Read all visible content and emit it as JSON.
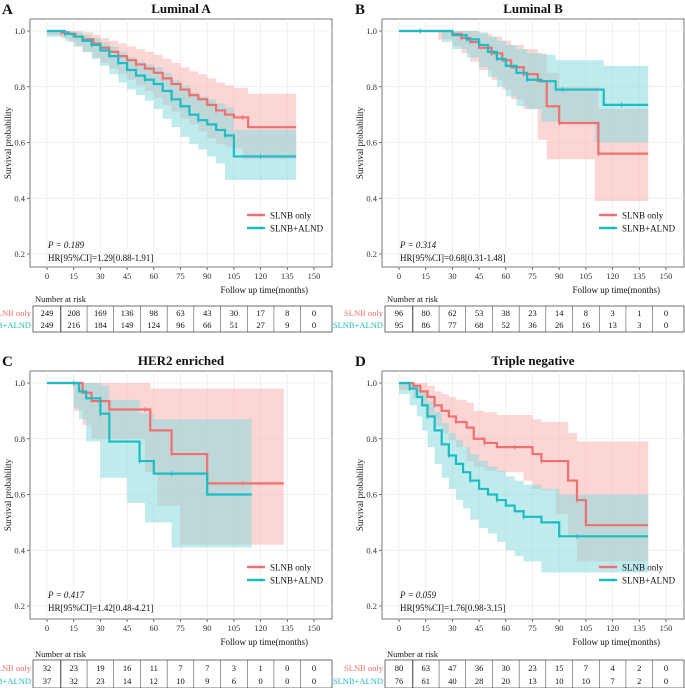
{
  "figure": {
    "y_axis_label": "Survival probability",
    "x_axis_label": "Follow up time(months)",
    "risk_title": "Number at risk",
    "colors": {
      "slnb": "#f07070",
      "alnd": "#1cbcc4",
      "slnb_fill": "#f9b2b2",
      "alnd_fill": "#8adadd"
    }
  },
  "chart_data": [
    {
      "type": "line",
      "letter": "A",
      "title": "Luminal A",
      "xlabel": "Follow up time(months)",
      "ylabel": "Survival probability",
      "xlim": [
        0,
        150
      ],
      "ylim": [
        0.2,
        1.0
      ],
      "x_ticks": [
        "0",
        "15",
        "30",
        "45",
        "60",
        "75",
        "90",
        "105",
        "120",
        "135",
        "150"
      ],
      "y_ticks": [
        "1.0",
        "0.8",
        "0.6",
        "0.4",
        "0.2"
      ],
      "legend": [
        "SLNB only",
        "SLNB+ALND"
      ],
      "p_text": "P = 0.189",
      "hr_text": "HR[95%CI]=1.29[0.88-1.91]",
      "risk_times": [
        0,
        15,
        30,
        45,
        60,
        75,
        90,
        105,
        120,
        135,
        150
      ],
      "series": [
        {
          "name": "SLNB only",
          "x": [
            0,
            8,
            12,
            16,
            20,
            26,
            30,
            35,
            40,
            45,
            50,
            55,
            60,
            65,
            70,
            75,
            80,
            85,
            90,
            95,
            100,
            105,
            110,
            113,
            125,
            140
          ],
          "y": [
            1.0,
            0.995,
            0.99,
            0.98,
            0.97,
            0.955,
            0.94,
            0.925,
            0.91,
            0.895,
            0.88,
            0.865,
            0.85,
            0.83,
            0.81,
            0.79,
            0.77,
            0.755,
            0.735,
            0.715,
            0.7,
            0.69,
            0.69,
            0.655,
            0.655,
            0.655
          ],
          "lower": [
            1.0,
            0.985,
            0.975,
            0.96,
            0.945,
            0.925,
            0.905,
            0.885,
            0.865,
            0.845,
            0.825,
            0.805,
            0.785,
            0.76,
            0.735,
            0.71,
            0.685,
            0.665,
            0.64,
            0.615,
            0.595,
            0.585,
            0.58,
            0.54,
            0.54,
            0.54
          ],
          "upper": [
            1.0,
            1.0,
            1.0,
            1.0,
            0.995,
            0.985,
            0.975,
            0.965,
            0.955,
            0.945,
            0.935,
            0.925,
            0.915,
            0.9,
            0.885,
            0.87,
            0.855,
            0.845,
            0.83,
            0.815,
            0.805,
            0.795,
            0.795,
            0.775,
            0.775,
            0.775
          ],
          "at_risk": [
            "249",
            "208",
            "169",
            "136",
            "98",
            "63",
            "43",
            "30",
            "17",
            "8",
            "0"
          ]
        },
        {
          "name": "SLNB+ALND",
          "x": [
            0,
            10,
            15,
            20,
            25,
            30,
            35,
            40,
            45,
            50,
            55,
            60,
            65,
            70,
            75,
            80,
            85,
            90,
            95,
            100,
            105,
            110,
            120,
            140
          ],
          "y": [
            1.0,
            0.99,
            0.98,
            0.965,
            0.95,
            0.93,
            0.91,
            0.885,
            0.86,
            0.84,
            0.825,
            0.81,
            0.785,
            0.755,
            0.73,
            0.7,
            0.68,
            0.665,
            0.645,
            0.625,
            0.55,
            0.55,
            0.55,
            0.55
          ],
          "lower": [
            1.0,
            0.98,
            0.965,
            0.945,
            0.925,
            0.9,
            0.875,
            0.845,
            0.815,
            0.79,
            0.77,
            0.75,
            0.72,
            0.685,
            0.655,
            0.62,
            0.595,
            0.575,
            0.55,
            0.525,
            0.465,
            0.465,
            0.465,
            0.465
          ],
          "upper": [
            1.0,
            1.0,
            0.995,
            0.985,
            0.975,
            0.96,
            0.945,
            0.925,
            0.905,
            0.89,
            0.88,
            0.87,
            0.85,
            0.825,
            0.805,
            0.78,
            0.765,
            0.755,
            0.74,
            0.725,
            0.645,
            0.645,
            0.645,
            0.645
          ],
          "at_risk": [
            "249",
            "216",
            "184",
            "149",
            "124",
            "96",
            "66",
            "51",
            "27",
            "9",
            "0"
          ]
        }
      ]
    },
    {
      "type": "line",
      "letter": "B",
      "title": "Luminal B",
      "xlabel": "Follow up time(months)",
      "ylabel": "Survival probability",
      "xlim": [
        0,
        150
      ],
      "ylim": [
        0.2,
        1.0
      ],
      "x_ticks": [
        "0",
        "15",
        "30",
        "45",
        "60",
        "75",
        "90",
        "105",
        "120",
        "135",
        "150"
      ],
      "y_ticks": [
        "1.0",
        "0.8",
        "0.6",
        "0.4",
        "0.2"
      ],
      "legend": [
        "SLNB only",
        "SLNB+ALND"
      ],
      "p_text": "P = 0.314",
      "hr_text": "HR[95%CI]=0.68[0.31-1.48]",
      "risk_times": [
        0,
        15,
        30,
        45,
        60,
        75,
        90,
        105,
        120,
        135,
        150
      ],
      "series": [
        {
          "name": "SLNB only",
          "x": [
            0,
            12,
            22,
            30,
            35,
            40,
            45,
            52,
            58,
            63,
            70,
            78,
            83,
            90,
            100,
            110,
            112,
            125,
            140
          ],
          "y": [
            1.0,
            1.0,
            1.0,
            0.99,
            0.975,
            0.96,
            0.94,
            0.92,
            0.895,
            0.87,
            0.845,
            0.82,
            0.73,
            0.67,
            0.67,
            0.67,
            0.56,
            0.56,
            0.56
          ],
          "lower": [
            1.0,
            1.0,
            1.0,
            0.97,
            0.945,
            0.92,
            0.89,
            0.86,
            0.825,
            0.79,
            0.755,
            0.72,
            0.61,
            0.54,
            0.54,
            0.54,
            0.39,
            0.39,
            0.39
          ],
          "upper": [
            1.0,
            1.0,
            1.0,
            1.0,
            1.0,
            1.0,
            0.99,
            0.98,
            0.965,
            0.95,
            0.935,
            0.92,
            0.85,
            0.8,
            0.8,
            0.8,
            0.72,
            0.72,
            0.72
          ],
          "at_risk": [
            "96",
            "80",
            "62",
            "53",
            "38",
            "23",
            "14",
            "8",
            "3",
            "1",
            "0"
          ]
        },
        {
          "name": "SLNB+ALND",
          "x": [
            0,
            12,
            24,
            30,
            38,
            45,
            50,
            55,
            60,
            66,
            72,
            80,
            88,
            92,
            110,
            115,
            125,
            140
          ],
          "y": [
            1.0,
            1.0,
            1.0,
            0.985,
            0.97,
            0.95,
            0.925,
            0.9,
            0.875,
            0.85,
            0.825,
            0.82,
            0.79,
            0.79,
            0.79,
            0.735,
            0.735,
            0.735
          ],
          "lower": [
            1.0,
            1.0,
            1.0,
            0.96,
            0.935,
            0.905,
            0.87,
            0.835,
            0.8,
            0.765,
            0.73,
            0.72,
            0.675,
            0.675,
            0.675,
            0.6,
            0.6,
            0.6
          ],
          "upper": [
            1.0,
            1.0,
            1.0,
            1.0,
            1.0,
            0.995,
            0.98,
            0.965,
            0.95,
            0.935,
            0.92,
            0.915,
            0.895,
            0.895,
            0.895,
            0.875,
            0.875,
            0.875
          ],
          "at_risk": [
            "95",
            "86",
            "77",
            "68",
            "52",
            "36",
            "26",
            "16",
            "13",
            "3",
            "0"
          ]
        }
      ]
    },
    {
      "type": "line",
      "letter": "C",
      "title": "HER2 enriched",
      "xlabel": "Follow up time(months)",
      "ylabel": "Survival probability",
      "xlim": [
        0,
        150
      ],
      "ylim": [
        0.2,
        1.0
      ],
      "x_ticks": [
        "0",
        "15",
        "30",
        "45",
        "60",
        "75",
        "90",
        "105",
        "120",
        "135",
        "150"
      ],
      "y_ticks": [
        "1.0",
        "0.8",
        "0.6",
        "0.4",
        "0.2"
      ],
      "legend": [
        "SLNB only",
        "SLNB+ALND"
      ],
      "p_text": "P = 0.417",
      "hr_text": "HR[95%CI]=1.42[0.48-4.21]",
      "risk_times": [
        0,
        15,
        30,
        45,
        60,
        75,
        90,
        105,
        120,
        135,
        150
      ],
      "series": [
        {
          "name": "SLNB only",
          "x": [
            0,
            15,
            20,
            25,
            35,
            40,
            48,
            55,
            58,
            62,
            70,
            75,
            90,
            110,
            133
          ],
          "y": [
            1.0,
            1.0,
            0.965,
            0.935,
            0.905,
            0.905,
            0.905,
            0.905,
            0.83,
            0.83,
            0.745,
            0.745,
            0.64,
            0.64,
            0.64
          ],
          "lower": [
            1.0,
            1.0,
            0.9,
            0.85,
            0.8,
            0.8,
            0.8,
            0.8,
            0.68,
            0.68,
            0.56,
            0.56,
            0.42,
            0.42,
            0.42
          ],
          "upper": [
            1.0,
            1.0,
            1.0,
            1.0,
            1.0,
            1.0,
            1.0,
            1.0,
            0.98,
            0.98,
            0.98,
            0.98,
            0.98,
            0.98,
            0.98
          ],
          "at_risk": [
            "32",
            "23",
            "19",
            "16",
            "11",
            "7",
            "7",
            "3",
            "1",
            "0",
            "0"
          ]
        },
        {
          "name": "SLNB+ALND",
          "x": [
            0,
            15,
            18,
            22,
            30,
            35,
            45,
            52,
            55,
            60,
            70,
            90,
            95,
            115
          ],
          "y": [
            1.0,
            1.0,
            0.97,
            0.945,
            0.89,
            0.79,
            0.79,
            0.72,
            0.72,
            0.675,
            0.675,
            0.6,
            0.6,
            0.6
          ],
          "lower": [
            1.0,
            1.0,
            0.91,
            0.87,
            0.79,
            0.66,
            0.66,
            0.57,
            0.57,
            0.5,
            0.5,
            0.41,
            0.41,
            0.41
          ],
          "upper": [
            1.0,
            1.0,
            1.0,
            1.0,
            0.99,
            0.94,
            0.94,
            0.89,
            0.89,
            0.87,
            0.87,
            0.87,
            0.87,
            0.87
          ],
          "at_risk": [
            "37",
            "32",
            "23",
            "14",
            "12",
            "10",
            "9",
            "6",
            "0",
            "0",
            "0"
          ]
        }
      ]
    },
    {
      "type": "line",
      "letter": "D",
      "title": "Triple negative",
      "xlabel": "Follow up time(months)",
      "ylabel": "Survival probability",
      "xlim": [
        0,
        150
      ],
      "ylim": [
        0.2,
        1.0
      ],
      "x_ticks": [
        "0",
        "15",
        "30",
        "45",
        "60",
        "75",
        "90",
        "105",
        "120",
        "135",
        "150"
      ],
      "y_ticks": [
        "1.0",
        "0.8",
        "0.6",
        "0.4",
        "0.2"
      ],
      "legend": [
        "SLNB only",
        "SLNB+ALND"
      ],
      "p_text": "P = 0.059",
      "hr_text": "HR[95%CI]=1.76[0.98-3.15]",
      "risk_times": [
        0,
        15,
        30,
        45,
        60,
        75,
        90,
        105,
        120,
        135,
        150
      ],
      "series": [
        {
          "name": "SLNB only",
          "x": [
            0,
            8,
            12,
            16,
            20,
            24,
            28,
            32,
            38,
            42,
            48,
            55,
            60,
            65,
            70,
            75,
            80,
            88,
            95,
            100,
            105,
            110,
            140
          ],
          "y": [
            1.0,
            0.99,
            0.97,
            0.95,
            0.92,
            0.9,
            0.88,
            0.86,
            0.84,
            0.8,
            0.785,
            0.77,
            0.77,
            0.77,
            0.77,
            0.745,
            0.72,
            0.72,
            0.65,
            0.58,
            0.49,
            0.49,
            0.49
          ],
          "lower": [
            1.0,
            0.975,
            0.945,
            0.915,
            0.875,
            0.845,
            0.82,
            0.795,
            0.77,
            0.72,
            0.7,
            0.685,
            0.68,
            0.68,
            0.68,
            0.65,
            0.62,
            0.615,
            0.53,
            0.45,
            0.36,
            0.36,
            0.36
          ],
          "upper": [
            1.0,
            1.0,
            1.0,
            0.99,
            0.97,
            0.96,
            0.95,
            0.94,
            0.93,
            0.9,
            0.895,
            0.885,
            0.885,
            0.885,
            0.885,
            0.87,
            0.86,
            0.86,
            0.82,
            0.79,
            0.79,
            0.79,
            0.79
          ],
          "at_risk": [
            "80",
            "63",
            "47",
            "36",
            "30",
            "23",
            "15",
            "7",
            "4",
            "2",
            "0"
          ]
        },
        {
          "name": "SLNB+ALND",
          "x": [
            0,
            6,
            10,
            13,
            16,
            20,
            24,
            28,
            32,
            36,
            40,
            45,
            50,
            55,
            60,
            65,
            70,
            80,
            90,
            100,
            110,
            140
          ],
          "y": [
            1.0,
            0.98,
            0.95,
            0.92,
            0.88,
            0.83,
            0.78,
            0.74,
            0.71,
            0.68,
            0.65,
            0.62,
            0.6,
            0.58,
            0.56,
            0.54,
            0.52,
            0.5,
            0.45,
            0.45,
            0.45,
            0.45
          ],
          "lower": [
            1.0,
            0.96,
            0.92,
            0.88,
            0.83,
            0.77,
            0.71,
            0.66,
            0.62,
            0.58,
            0.55,
            0.51,
            0.48,
            0.46,
            0.43,
            0.4,
            0.38,
            0.36,
            0.32,
            0.32,
            0.32,
            0.32
          ],
          "upper": [
            1.0,
            1.0,
            0.985,
            0.965,
            0.935,
            0.895,
            0.855,
            0.82,
            0.795,
            0.77,
            0.745,
            0.72,
            0.7,
            0.685,
            0.665,
            0.65,
            0.635,
            0.62,
            0.6,
            0.6,
            0.6,
            0.6
          ],
          "at_risk": [
            "76",
            "61",
            "40",
            "28",
            "20",
            "13",
            "10",
            "10",
            "7",
            "2",
            "0"
          ]
        }
      ]
    }
  ]
}
